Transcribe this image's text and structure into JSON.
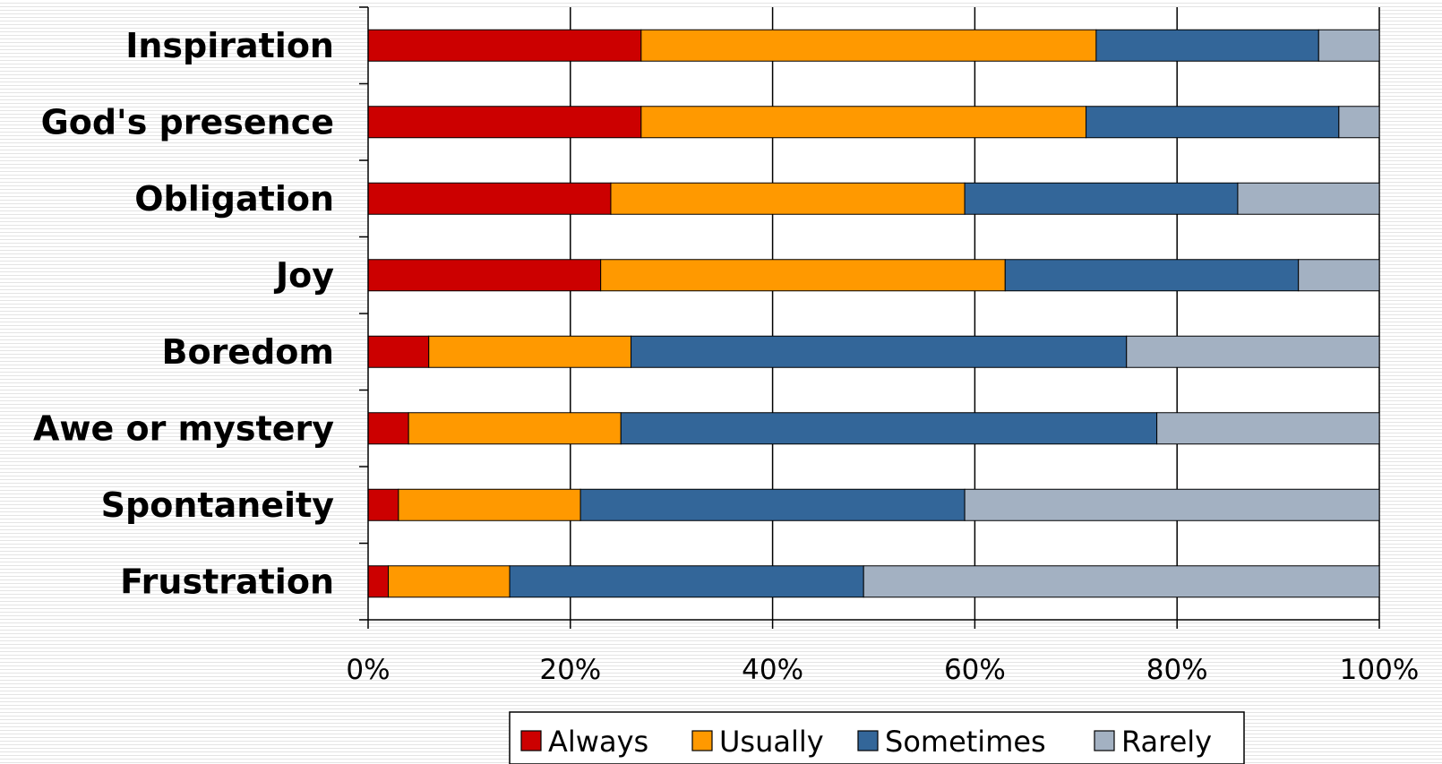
{
  "chart_data": {
    "type": "bar",
    "orientation": "horizontal",
    "stacked": "percent",
    "categories": [
      "Inspiration",
      "God's presence",
      "Obligation",
      "Joy",
      "Boredom",
      "Awe or mystery",
      "Spontaneity",
      "Frustration"
    ],
    "series": [
      {
        "name": "Always",
        "color": "#cc0000",
        "values": [
          27,
          27,
          24,
          23,
          6,
          4,
          3,
          2
        ]
      },
      {
        "name": "Usually",
        "color": "#ff9900",
        "values": [
          45,
          44,
          35,
          40,
          20,
          21,
          18,
          12
        ]
      },
      {
        "name": "Sometimes",
        "color": "#336699",
        "values": [
          22,
          25,
          27,
          29,
          49,
          53,
          38,
          35
        ]
      },
      {
        "name": "Rarely",
        "color": "#a3b1c2",
        "values": [
          6,
          4,
          14,
          8,
          25,
          22,
          41,
          51
        ]
      }
    ],
    "x_ticks": [
      "0%",
      "20%",
      "40%",
      "60%",
      "80%",
      "100%"
    ],
    "xlim": [
      0,
      100
    ],
    "grid": true,
    "legend_position": "bottom"
  }
}
